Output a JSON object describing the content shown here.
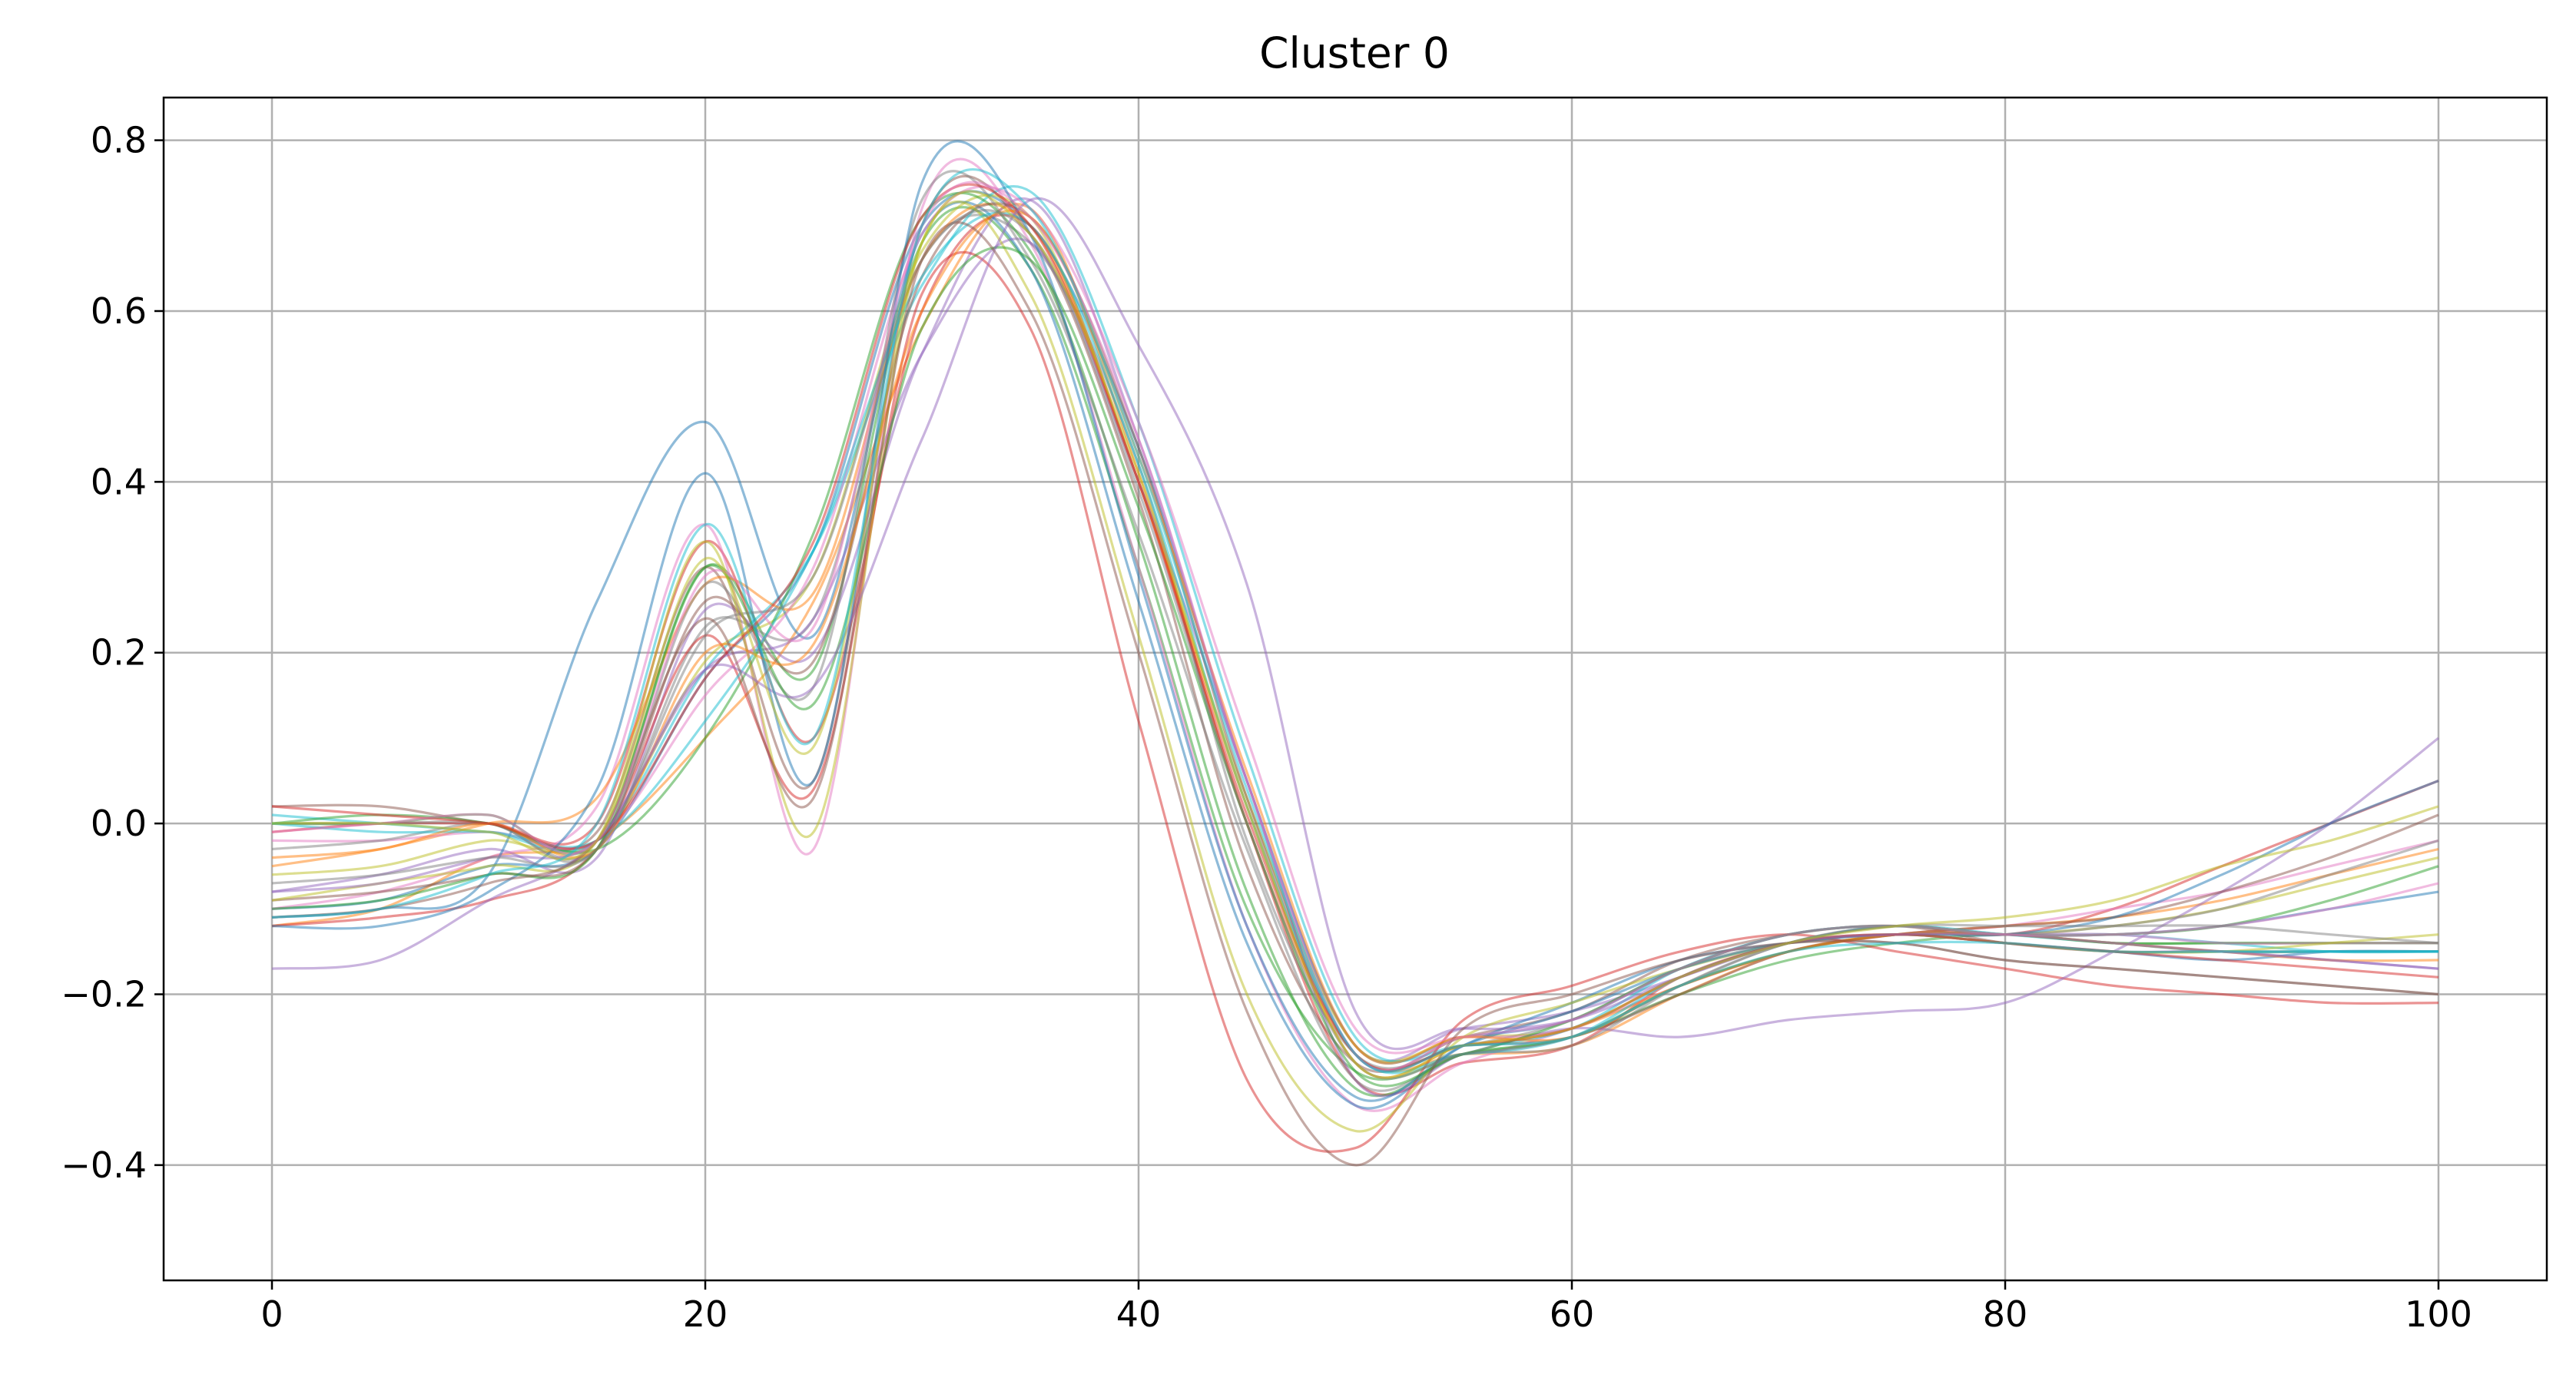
{
  "chart_data": {
    "type": "line",
    "title": "Cluster 0",
    "xlabel": "",
    "ylabel": "",
    "xlim": [
      -5,
      105
    ],
    "ylim": [
      -0.535,
      0.85
    ],
    "grid": true,
    "legend": "none",
    "x_ticks": [
      {
        "value": 0,
        "label": "0"
      },
      {
        "value": 20,
        "label": "20"
      },
      {
        "value": 40,
        "label": "40"
      },
      {
        "value": 60,
        "label": "60"
      },
      {
        "value": 80,
        "label": "80"
      },
      {
        "value": 100,
        "label": "100"
      }
    ],
    "y_ticks": [
      {
        "value": -0.4,
        "label": "−0.4"
      },
      {
        "value": -0.2,
        "label": "−0.2"
      },
      {
        "value": 0.0,
        "label": "0.0"
      },
      {
        "value": 0.2,
        "label": "0.2"
      },
      {
        "value": 0.4,
        "label": "0.4"
      },
      {
        "value": 0.6,
        "label": "0.6"
      },
      {
        "value": 0.8,
        "label": "0.8"
      }
    ],
    "colors": [
      "#1f77b4",
      "#ff7f0e",
      "#2ca02c",
      "#d62728",
      "#9467bd",
      "#8c564b",
      "#e377c2",
      "#7f7f7f",
      "#bcbd22",
      "#17becf"
    ],
    "line_alpha": 0.5,
    "x": [
      0,
      5,
      10,
      15,
      20,
      25,
      30,
      35,
      40,
      45,
      50,
      55,
      60,
      65,
      70,
      75,
      80,
      85,
      90,
      95,
      100
    ],
    "series": [
      {
        "values": [
          -0.1,
          -0.09,
          -0.05,
          -0.03,
          0.17,
          0.32,
          0.7,
          0.7,
          0.44,
          0.05,
          -0.26,
          -0.25,
          -0.23,
          -0.17,
          -0.13,
          -0.12,
          -0.13,
          -0.13,
          -0.12,
          -0.1,
          -0.08
        ]
      },
      {
        "values": [
          -0.12,
          -0.1,
          -0.04,
          -0.02,
          0.1,
          0.26,
          0.58,
          0.72,
          0.41,
          0.0,
          -0.27,
          -0.27,
          -0.26,
          -0.2,
          -0.15,
          -0.13,
          -0.13,
          -0.14,
          -0.15,
          -0.15,
          -0.15
        ]
      },
      {
        "values": [
          0.0,
          0.0,
          0.01,
          -0.02,
          0.3,
          0.18,
          0.68,
          0.65,
          0.3,
          -0.1,
          -0.29,
          -0.27,
          -0.25,
          -0.2,
          -0.16,
          -0.14,
          -0.13,
          -0.14,
          -0.14,
          -0.14,
          -0.14
        ]
      },
      {
        "values": [
          -0.01,
          0.0,
          0.0,
          0.0,
          0.33,
          0.1,
          0.6,
          0.7,
          0.4,
          0.0,
          -0.3,
          -0.28,
          -0.26,
          -0.18,
          -0.14,
          -0.12,
          -0.13,
          -0.1,
          -0.05,
          0.0,
          0.05
        ]
      },
      {
        "values": [
          -0.08,
          -0.06,
          -0.03,
          -0.04,
          0.25,
          0.2,
          0.55,
          0.73,
          0.45,
          0.05,
          -0.26,
          -0.24,
          -0.22,
          -0.18,
          -0.14,
          -0.13,
          -0.14,
          -0.15,
          -0.15,
          -0.16,
          -0.17
        ]
      },
      {
        "values": [
          0.02,
          0.02,
          0.0,
          -0.01,
          0.3,
          0.05,
          0.7,
          0.69,
          0.38,
          -0.05,
          -0.28,
          -0.25,
          -0.22,
          -0.16,
          -0.13,
          -0.12,
          -0.14,
          -0.15,
          -0.15,
          -0.15,
          -0.15
        ]
      },
      {
        "values": [
          -0.1,
          -0.08,
          -0.04,
          0.02,
          0.35,
          -0.03,
          0.72,
          0.68,
          0.3,
          -0.12,
          -0.33,
          -0.28,
          -0.24,
          -0.19,
          -0.15,
          -0.13,
          -0.12,
          -0.1,
          -0.08,
          -0.05,
          -0.02
        ]
      },
      {
        "values": [
          0.0,
          0.0,
          0.0,
          -0.03,
          0.23,
          0.24,
          0.66,
          0.68,
          0.42,
          -0.02,
          -0.27,
          -0.26,
          -0.23,
          -0.17,
          -0.14,
          -0.14,
          -0.16,
          -0.17,
          -0.18,
          -0.19,
          -0.2
        ]
      },
      {
        "values": [
          -0.06,
          -0.05,
          -0.02,
          -0.02,
          0.19,
          0.29,
          0.67,
          0.71,
          0.4,
          0.03,
          -0.26,
          -0.25,
          -0.24,
          -0.18,
          -0.14,
          -0.13,
          -0.13,
          -0.12,
          -0.1,
          -0.07,
          -0.04
        ]
      },
      {
        "values": [
          0.01,
          0.0,
          -0.01,
          -0.02,
          0.18,
          0.32,
          0.63,
          0.74,
          0.47,
          0.08,
          -0.25,
          -0.26,
          -0.24,
          -0.17,
          -0.13,
          -0.12,
          -0.13,
          -0.13,
          -0.14,
          -0.15,
          -0.15
        ]
      },
      {
        "values": [
          -0.11,
          -0.1,
          -0.06,
          0.26,
          0.47,
          0.22,
          0.69,
          0.65,
          0.26,
          -0.14,
          -0.33,
          -0.26,
          -0.21,
          -0.16,
          -0.14,
          -0.13,
          -0.14,
          -0.15,
          -0.16,
          -0.15,
          -0.15
        ]
      },
      {
        "values": [
          -0.05,
          -0.03,
          0.0,
          0.03,
          0.28,
          0.27,
          0.66,
          0.7,
          0.4,
          0.02,
          -0.28,
          -0.26,
          -0.24,
          -0.19,
          -0.15,
          -0.13,
          -0.12,
          -0.11,
          -0.09,
          -0.06,
          -0.03
        ]
      },
      {
        "values": [
          0.0,
          0.01,
          0.0,
          -0.03,
          0.1,
          0.34,
          0.71,
          0.67,
          0.33,
          -0.08,
          -0.31,
          -0.27,
          -0.25,
          -0.19,
          -0.15,
          -0.13,
          -0.13,
          -0.14,
          -0.14,
          -0.14,
          -0.14
        ]
      },
      {
        "values": [
          -0.12,
          -0.11,
          -0.09,
          -0.03,
          0.22,
          0.04,
          0.62,
          0.58,
          0.12,
          -0.3,
          -0.38,
          -0.23,
          -0.19,
          -0.15,
          -0.13,
          -0.15,
          -0.17,
          -0.19,
          -0.2,
          -0.21,
          -0.21
        ]
      },
      {
        "values": [
          -0.17,
          -0.16,
          -0.09,
          -0.02,
          0.18,
          0.24,
          0.55,
          0.68,
          0.4,
          0.05,
          -0.3,
          -0.27,
          -0.24,
          -0.25,
          -0.23,
          -0.22,
          -0.21,
          -0.15,
          -0.08,
          0.0,
          0.1
        ]
      },
      {
        "values": [
          -0.09,
          -0.08,
          -0.06,
          -0.03,
          0.26,
          0.19,
          0.64,
          0.71,
          0.44,
          0.03,
          -0.27,
          -0.26,
          -0.25,
          -0.2,
          -0.15,
          -0.13,
          -0.12,
          -0.11,
          -0.08,
          -0.04,
          0.01
        ]
      },
      {
        "values": [
          -0.02,
          -0.02,
          -0.01,
          -0.02,
          0.15,
          0.3,
          0.69,
          0.72,
          0.47,
          0.1,
          -0.24,
          -0.25,
          -0.24,
          -0.18,
          -0.14,
          -0.13,
          -0.13,
          -0.13,
          -0.14,
          -0.14,
          -0.14
        ]
      },
      {
        "values": [
          -0.03,
          -0.02,
          0.0,
          -0.03,
          0.28,
          0.16,
          0.73,
          0.66,
          0.34,
          -0.03,
          -0.3,
          -0.27,
          -0.26,
          -0.19,
          -0.14,
          -0.12,
          -0.13,
          -0.12,
          -0.1,
          -0.06,
          -0.02
        ]
      },
      {
        "values": [
          -0.09,
          -0.07,
          -0.05,
          -0.02,
          0.33,
          -0.01,
          0.68,
          0.62,
          0.22,
          -0.2,
          -0.36,
          -0.25,
          -0.21,
          -0.17,
          -0.14,
          -0.13,
          -0.14,
          -0.15,
          -0.15,
          -0.14,
          -0.13
        ]
      },
      {
        "values": [
          0.0,
          -0.01,
          -0.01,
          -0.02,
          0.12,
          0.32,
          0.64,
          0.7,
          0.42,
          0.02,
          -0.27,
          -0.27,
          -0.25,
          -0.18,
          -0.14,
          -0.12,
          -0.13,
          -0.14,
          -0.15,
          -0.15,
          -0.15
        ]
      },
      {
        "values": [
          -0.12,
          -0.12,
          -0.08,
          0.04,
          0.41,
          0.05,
          0.75,
          0.69,
          0.29,
          -0.12,
          -0.32,
          -0.26,
          -0.22,
          -0.17,
          -0.14,
          -0.13,
          -0.13,
          -0.11,
          -0.06,
          0.0,
          0.05
        ]
      },
      {
        "values": [
          -0.04,
          -0.03,
          0.0,
          -0.03,
          0.2,
          0.21,
          0.6,
          0.71,
          0.43,
          0.06,
          -0.26,
          -0.25,
          -0.25,
          -0.19,
          -0.15,
          -0.13,
          -0.13,
          -0.14,
          -0.15,
          -0.16,
          -0.16
        ]
      },
      {
        "values": [
          -0.1,
          -0.09,
          -0.06,
          -0.03,
          0.3,
          0.14,
          0.58,
          0.66,
          0.37,
          0.0,
          -0.29,
          -0.27,
          -0.23,
          -0.17,
          -0.13,
          -0.12,
          -0.13,
          -0.13,
          -0.12,
          -0.09,
          -0.05
        ]
      },
      {
        "values": [
          0.02,
          0.01,
          0.0,
          -0.02,
          0.17,
          0.33,
          0.71,
          0.7,
          0.4,
          0.01,
          -0.27,
          -0.26,
          -0.24,
          -0.18,
          -0.14,
          -0.13,
          -0.14,
          -0.15,
          -0.16,
          -0.17,
          -0.18
        ]
      },
      {
        "values": [
          -0.08,
          -0.07,
          -0.04,
          -0.02,
          0.18,
          0.16,
          0.45,
          0.73,
          0.56,
          0.28,
          -0.22,
          -0.24,
          -0.23,
          -0.18,
          -0.14,
          -0.13,
          -0.13,
          -0.14,
          -0.15,
          -0.16,
          -0.17
        ]
      },
      {
        "values": [
          -0.11,
          -0.1,
          -0.07,
          -0.02,
          0.24,
          0.03,
          0.66,
          0.6,
          0.2,
          -0.22,
          -0.4,
          -0.24,
          -0.2,
          -0.16,
          -0.14,
          -0.14,
          -0.16,
          -0.17,
          -0.18,
          -0.19,
          -0.2
        ]
      },
      {
        "values": [
          -0.01,
          0.0,
          0.01,
          -0.02,
          0.29,
          0.23,
          0.7,
          0.71,
          0.45,
          0.05,
          -0.27,
          -0.25,
          -0.23,
          -0.17,
          -0.13,
          -0.12,
          -0.13,
          -0.13,
          -0.12,
          -0.1,
          -0.07
        ]
      },
      {
        "values": [
          -0.07,
          -0.06,
          -0.04,
          -0.03,
          0.22,
          0.29,
          0.66,
          0.69,
          0.39,
          0.0,
          -0.28,
          -0.27,
          -0.25,
          -0.19,
          -0.14,
          -0.12,
          -0.12,
          -0.12,
          -0.12,
          -0.13,
          -0.14
        ]
      },
      {
        "values": [
          0.0,
          0.0,
          -0.01,
          -0.02,
          0.31,
          0.09,
          0.68,
          0.69,
          0.41,
          0.02,
          -0.28,
          -0.26,
          -0.24,
          -0.18,
          -0.14,
          -0.12,
          -0.11,
          -0.09,
          -0.05,
          -0.02,
          0.02
        ]
      },
      {
        "values": [
          -0.11,
          -0.1,
          -0.06,
          0.0,
          0.35,
          0.1,
          0.7,
          0.72,
          0.43,
          0.04,
          -0.27,
          -0.26,
          -0.25,
          -0.19,
          -0.15,
          -0.14,
          -0.14,
          -0.15,
          -0.15,
          -0.15,
          -0.15
        ]
      }
    ]
  }
}
